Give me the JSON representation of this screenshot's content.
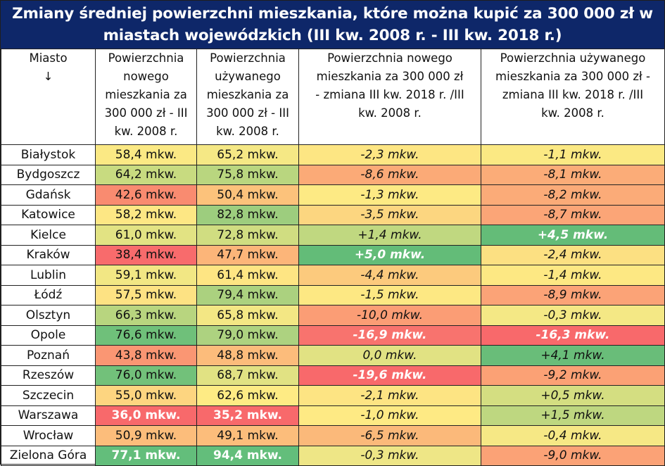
{
  "title": {
    "line1": "Zmiany średniej powierzchni mieszkania, które można kupić za 300 000 zł w",
    "line2": "miastach wojewódzkich (III kw. 2008 r. - III kw. 2018 r.)"
  },
  "headers": {
    "city": "Miasto",
    "city_arrow": "↓",
    "new_2008": "Powierzchnia nowego mieszkania za 300 000 zł - III kw. 2008 r.",
    "used_2008": "Powierzchnia używanego mieszkania za 300 000 zł - III kw. 2008 r.",
    "new_change": "Powierzchnia nowego mieszkania za 300 000 zł - zmiana III kw. 2018 r. /III kw. 2008 r.",
    "used_change": "Powierzchnia używanego mieszkania za 300 000 zł - zmiana III kw. 2018 r. /III kw. 2008 r."
  },
  "rows": [
    {
      "city": "Białystok",
      "new": "58,4 mkw.",
      "used": "65,2 mkw.",
      "new_chg": "-2,3 mkw.",
      "used_chg": "-1,1 mkw.",
      "c": [
        "#fbe984",
        "#f5e885",
        "#fde683",
        "#fbe983"
      ],
      "b": [
        0,
        0,
        0,
        0
      ]
    },
    {
      "city": "Bydgoszcz",
      "new": "64,2 mkw.",
      "used": "75,8 mkw.",
      "new_chg": "-8,6 mkw.",
      "used_chg": "-8,1 mkw.",
      "c": [
        "#c8db80",
        "#b9d67f",
        "#fbaa77",
        "#fbac78"
      ],
      "b": [
        0,
        0,
        0,
        0
      ]
    },
    {
      "city": "Gdańsk",
      "new": "42,6 mkw.",
      "used": "50,4 mkw.",
      "new_chg": "-1,3 mkw.",
      "used_chg": "-8,2 mkw.",
      "c": [
        "#f98b70",
        "#fcc27b",
        "#fdea84",
        "#fbab78"
      ],
      "b": [
        0,
        0,
        0,
        0
      ]
    },
    {
      "city": "Katowice",
      "new": "58,2 mkw.",
      "used": "82,8 mkw.",
      "new_chg": "-3,5 mkw.",
      "used_chg": "-8,7 mkw.",
      "c": [
        "#fde784",
        "#9dcd7e",
        "#fcd680",
        "#fba577"
      ],
      "b": [
        0,
        0,
        0,
        0
      ]
    },
    {
      "city": "Kielce",
      "new": "61,0 mkw.",
      "used": "72,8 mkw.",
      "new_chg": "+1,4 mkw.",
      "used_chg": "+4,5 mkw.",
      "c": [
        "#e2e383",
        "#d0dd81",
        "#c0d880",
        "#64bc78"
      ],
      "b": [
        0,
        0,
        0,
        1
      ]
    },
    {
      "city": "Kraków",
      "new": "38,4 mkw.",
      "used": "47,7 mkw.",
      "new_chg": "+5,0 mkw.",
      "used_chg": "-2,4 mkw.",
      "c": [
        "#f86b6c",
        "#fcb579",
        "#63bc78",
        "#fce082"
      ],
      "b": [
        0,
        0,
        1,
        0
      ]
    },
    {
      "city": "Lublin",
      "new": "59,1 mkw.",
      "used": "61,4 mkw.",
      "new_chg": "-4,4 mkw.",
      "used_chg": "-1,4 mkw.",
      "c": [
        "#f2e784",
        "#fee583",
        "#fcca7d",
        "#fde883"
      ],
      "b": [
        0,
        0,
        0,
        0
      ]
    },
    {
      "city": "Łódź",
      "new": "57,5 mkw.",
      "used": "79,4 mkw.",
      "new_chg": "-1,5 mkw.",
      "used_chg": "-8,9 mkw.",
      "c": [
        "#fde283",
        "#abd17f",
        "#fde883",
        "#fba377"
      ],
      "b": [
        0,
        0,
        0,
        0
      ]
    },
    {
      "city": "Olsztyn",
      "new": "66,3 mkw.",
      "used": "65,8 mkw.",
      "new_chg": "-10,0 mkw.",
      "used_chg": "-0,3 mkw.",
      "c": [
        "#b8d57f",
        "#f3e784",
        "#fb9d75",
        "#f4e885"
      ],
      "b": [
        0,
        0,
        0,
        0
      ]
    },
    {
      "city": "Opole",
      "new": "76,6 mkw.",
      "used": "79,0 mkw.",
      "new_chg": "-16,9 mkw.",
      "used_chg": "-16,3 mkw.",
      "c": [
        "#6fc07a",
        "#add280",
        "#f8736e",
        "#f8696b"
      ],
      "b": [
        0,
        0,
        1,
        1
      ]
    },
    {
      "city": "Poznań",
      "new": "43,8 mkw.",
      "used": "48,8 mkw.",
      "new_chg": "0,0 mkw.",
      "used_chg": "+4,1 mkw.",
      "c": [
        "#fa9673",
        "#fcbc7b",
        "#e1e283",
        "#69bd79"
      ],
      "b": [
        0,
        0,
        0,
        0
      ]
    },
    {
      "city": "Rzeszów",
      "new": "76,0 mkw.",
      "used": "68,7 mkw.",
      "new_chg": "-19,6 mkw.",
      "used_chg": "-9,2 mkw.",
      "c": [
        "#72c17a",
        "#e1e283",
        "#f8696b",
        "#fba175"
      ],
      "b": [
        0,
        0,
        1,
        0
      ]
    },
    {
      "city": "Szczecin",
      "new": "55,0 mkw.",
      "used": "62,6 mkw.",
      "new_chg": "-2,1 mkw.",
      "used_chg": "+0,5 mkw.",
      "c": [
        "#fdd580",
        "#feeb84",
        "#fde483",
        "#d4de81"
      ],
      "b": [
        0,
        0,
        0,
        0
      ]
    },
    {
      "city": "Warszawa",
      "new": "36,0 mkw.",
      "used": "35,2 mkw.",
      "new_chg": "-1,0 mkw.",
      "used_chg": "+1,5 mkw.",
      "c": [
        "#f8696b",
        "#f8696b",
        "#feea84",
        "#bed780"
      ],
      "b": [
        1,
        1,
        0,
        0
      ]
    },
    {
      "city": "Wrocław",
      "new": "50,9 mkw.",
      "used": "49,1 mkw.",
      "new_chg": "-6,5 mkw.",
      "used_chg": "-0,4 mkw.",
      "c": [
        "#fcbd7b",
        "#fcbd7b",
        "#fbb97a",
        "#f6e885"
      ],
      "b": [
        0,
        0,
        0,
        0
      ]
    },
    {
      "city": "Zielona Góra",
      "new": "77,1 mkw.",
      "used": "94,4 mkw.",
      "new_chg": "-0,3 mkw.",
      "used_chg": "-9,0 mkw.",
      "c": [
        "#63be7b",
        "#63be7b",
        "#eee686",
        "#fba276"
      ],
      "b": [
        1,
        1,
        0,
        0
      ]
    }
  ]
}
